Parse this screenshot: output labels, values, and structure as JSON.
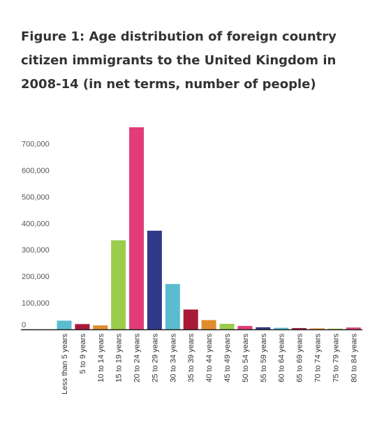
{
  "chart_data": {
    "type": "bar",
    "title": "Figure 1: Age distribution of foreign country citizen immigrants to the United Kingdom in 2008-14 (in net terms, number of people)",
    "categories": [
      "Less than 5 years",
      "5 to 9 years",
      "10 to 14 years",
      "15 to 19 years",
      "20 to 24 years",
      "25 to 29 years",
      "30 to 34 years",
      "35 to 39 years",
      "40 to 44 years",
      "45 to 49 years",
      "50 to 54 years",
      "55 to 59 years",
      "60 to 64 years",
      "65 to 69 years",
      "70 to 74 years",
      "75 to 79 years",
      "80 to 84 years"
    ],
    "values": [
      33000,
      20000,
      15000,
      336000,
      762000,
      372000,
      171000,
      75000,
      35000,
      21000,
      13000,
      8000,
      6000,
      5000,
      4000,
      3000,
      7000
    ],
    "colors": [
      "#5bbccf",
      "#a8193a",
      "#e08c2e",
      "#9ccc4c",
      "#e13c78",
      "#323888",
      "#5bbccf",
      "#a8193a",
      "#e08c2e",
      "#9ccc4c",
      "#e13c78",
      "#323888",
      "#5bbccf",
      "#a8193a",
      "#e08c2e",
      "#9ccc4c",
      "#e13c78"
    ],
    "ytick_values": [
      0,
      100000,
      200000,
      300000,
      400000,
      500000,
      600000,
      700000
    ],
    "ytick_labels": [
      "0",
      "100,000",
      "200,000",
      "300,000",
      "400,000",
      "500,000",
      "600,000",
      "700,000"
    ],
    "ylim": [
      0,
      762000
    ],
    "xlabel": "",
    "ylabel": "",
    "grid": false,
    "legend": "none"
  }
}
